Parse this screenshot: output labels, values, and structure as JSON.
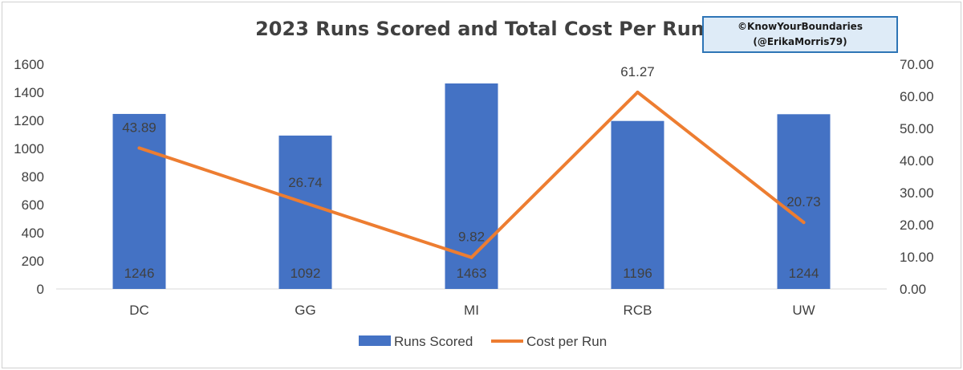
{
  "chart_data": {
    "type": "bar",
    "title": "2023 Runs Scored and Total Cost Per Run",
    "categories": [
      "DC",
      "GG",
      "MI",
      "RCB",
      "UW"
    ],
    "series": [
      {
        "name": "Runs Scored",
        "type": "bar",
        "axis": "left",
        "color": "#4472C4",
        "values": [
          1246,
          1092,
          1463,
          1196,
          1244
        ]
      },
      {
        "name": "Cost per Run",
        "type": "line",
        "axis": "right",
        "color": "#ED7D31",
        "values": [
          43.89,
          26.74,
          9.82,
          61.27,
          20.73
        ]
      }
    ],
    "ylim": [
      0,
      1600
    ],
    "y_ticks": [
      "0",
      "200",
      "400",
      "600",
      "800",
      "1000",
      "1200",
      "1400",
      "1600"
    ],
    "y2lim": [
      0,
      70
    ],
    "y2_ticks": [
      "0.00",
      "10.00",
      "20.00",
      "30.00",
      "40.00",
      "50.00",
      "60.00",
      "70.00"
    ],
    "bar_labels": [
      "1246",
      "1092",
      "1463",
      "1196",
      "1244"
    ],
    "line_labels": [
      "43.89",
      "26.74",
      "9.82",
      "61.27",
      "20.73"
    ],
    "grid": false,
    "legend": "bottom",
    "legend_entries": [
      "Runs Scored",
      "Cost per Run"
    ]
  },
  "watermark": {
    "line1": "©KnowYourBoundaries",
    "line2": "(@ErikaMorris79)",
    "bg_color": "#DEEBF7",
    "border_color": "#2E75B6"
  }
}
